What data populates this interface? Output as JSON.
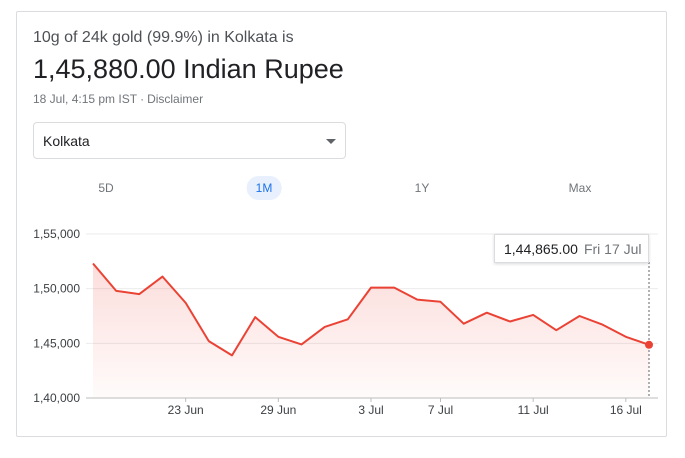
{
  "header": {
    "headline": "10g of 24k gold (99.9%) in Kolkata is",
    "price": "1,45,880.00 Indian Rupee",
    "timestamp": "18 Jul, 4:15 pm IST",
    "separator": "·",
    "disclaimer": "Disclaimer"
  },
  "city_select": {
    "value": "Kolkata"
  },
  "tabs": [
    {
      "label": "5D"
    },
    {
      "label": "1M",
      "active": true
    },
    {
      "label": "1Y"
    },
    {
      "label": "Max"
    }
  ],
  "tooltip": {
    "value": "1,44,865.00",
    "date": "Fri 17 Jul"
  },
  "colors": {
    "line": "#ea4335",
    "active_tab": "#1a73e8",
    "active_tab_bg": "#e8f0fe",
    "grid": "#ebebeb"
  },
  "chart_data": {
    "type": "area",
    "title": "",
    "xlabel": "",
    "ylabel": "",
    "ylim": [
      140000,
      155000
    ],
    "y_ticks": [
      "1,40,000",
      "1,45,000",
      "1,50,000",
      "1,55,000"
    ],
    "y_tick_values": [
      140000,
      145000,
      150000,
      155000
    ],
    "x_ticks": [
      "23 Jun",
      "29 Jun",
      "3 Jul",
      "7 Jul",
      "11 Jul",
      "16 Jul"
    ],
    "x_tick_positions": [
      4,
      8,
      12,
      15,
      19,
      23
    ],
    "series": [
      {
        "values": [
          152300,
          149800,
          149500,
          151100,
          148700,
          145200,
          143900,
          147400,
          145600,
          144900,
          146500,
          147200,
          150100,
          150100,
          149000,
          148800,
          146800,
          147800,
          147000,
          147600,
          146200,
          147500,
          146700,
          145600,
          144865
        ]
      }
    ],
    "grid": true,
    "highlight_index": 24
  }
}
